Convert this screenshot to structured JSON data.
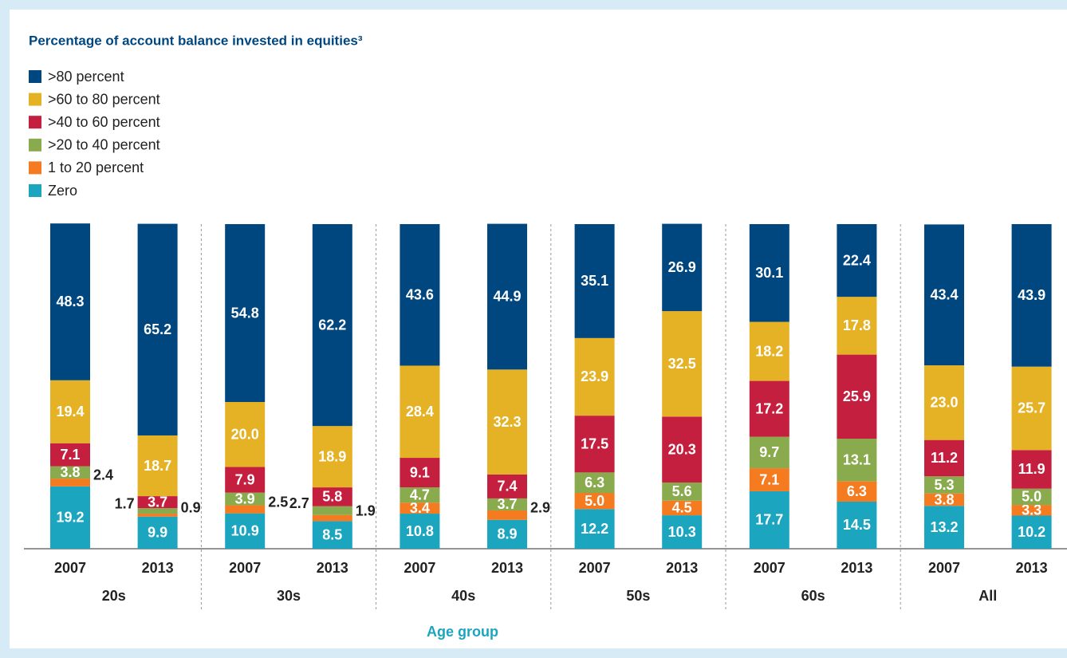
{
  "chart_data": {
    "type": "stacked_bar",
    "title": "Percentage of account balance invested in equities³",
    "x_label": "Age group",
    "categories": [
      "2007",
      "2013",
      "2007",
      "2013",
      "2007",
      "2013",
      "2007",
      "2013",
      "2007",
      "2013",
      "2007",
      "2013"
    ],
    "groups": [
      "20s",
      "30s",
      "40s",
      "50s",
      "60s",
      "All"
    ],
    "ylim": [
      0,
      100
    ],
    "series": [
      {
        "name": "Zero",
        "color": "#1ba5bf",
        "values": [
          19.2,
          9.9,
          10.9,
          8.5,
          10.8,
          8.9,
          12.2,
          10.3,
          17.7,
          14.5,
          13.2,
          10.2
        ],
        "value_labels": [
          "19.2",
          "9.9",
          "10.9",
          "8.5",
          "10.8",
          "8.9",
          "12.2",
          "10.3",
          "17.7",
          "14.5",
          "13.2",
          "10.2"
        ]
      },
      {
        "name": "1 to 20 percent",
        "color": "#f47b20",
        "values": [
          2.4,
          0.9,
          2.5,
          1.9,
          3.4,
          2.9,
          5.0,
          4.5,
          7.1,
          6.3,
          3.8,
          3.3
        ],
        "value_labels": [
          "2.4",
          "0.9",
          "2.5",
          "1.9",
          "3.4",
          "2.9",
          "5.0",
          "4.5",
          "7.1",
          "6.3",
          "3.8",
          "3.3"
        ]
      },
      {
        "name": ">20 to 40 percent",
        "color": "#8aab4d",
        "values": [
          3.8,
          1.7,
          3.9,
          2.7,
          4.7,
          3.7,
          6.3,
          5.6,
          9.7,
          13.1,
          5.3,
          5.0
        ],
        "value_labels": [
          "3.8",
          "1.7",
          "3.9",
          "2.7",
          "4.7",
          "3.7",
          "6.3",
          "5.6",
          "9.7",
          "13.1",
          "5.3",
          "5.0"
        ]
      },
      {
        "name": ">40 to 60 percent",
        "color": "#c41f3e",
        "values": [
          7.1,
          3.7,
          7.9,
          5.8,
          9.1,
          7.4,
          17.5,
          20.3,
          17.2,
          25.9,
          11.2,
          11.9
        ],
        "value_labels": [
          "7.1",
          "3.7",
          "7.9",
          "5.8",
          "9.1",
          "7.4",
          "17.5",
          "20.3",
          "17.2",
          "25.9",
          "11.2",
          "11.9"
        ]
      },
      {
        "name": ">60 to 80 percent",
        "color": "#e5b225",
        "values": [
          19.4,
          18.7,
          20.0,
          18.9,
          28.4,
          32.3,
          23.9,
          32.5,
          18.2,
          17.8,
          23.0,
          25.7
        ],
        "value_labels": [
          "19.4",
          "18.7",
          "20.0",
          "18.9",
          "28.4",
          "32.3",
          "23.9",
          "32.5",
          "18.2",
          "17.8",
          "23.0",
          "25.7"
        ]
      },
      {
        "name": ">80 percent",
        "color": "#00467f",
        "values": [
          48.3,
          65.2,
          54.8,
          62.2,
          43.6,
          44.9,
          35.1,
          26.9,
          30.1,
          22.4,
          43.4,
          43.9
        ],
        "value_labels": [
          "48.3",
          "65.2",
          "54.8",
          "62.2",
          "43.6",
          "44.9",
          "35.1",
          "26.9",
          "30.1",
          "22.4",
          "43.4",
          "43.9"
        ]
      }
    ]
  }
}
